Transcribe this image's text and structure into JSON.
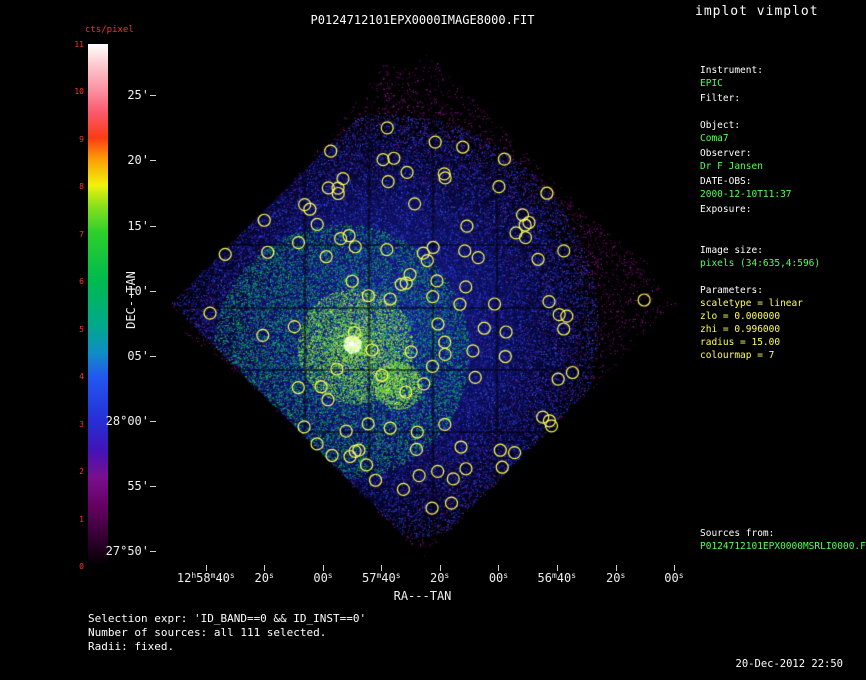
{
  "app": {
    "title": "implot vimplot",
    "timestamp": "20-Dec-2012 22:50"
  },
  "chart_data": {
    "type": "heatmap",
    "title": "P0124712101EPX0000IMAGE8000.FIT",
    "xlabel": "RA---TAN",
    "ylabel": "DEC--TAN",
    "x_ticks": [
      "12^h^58^m^40^s^",
      "20^s^",
      "00^s^",
      "57^m^40^s^",
      "20^s^",
      "00^s^",
      "56^m^40^s^",
      "20^s^",
      "00^s^"
    ],
    "y_ticks": [
      "25'",
      "20'",
      "15'",
      "10'",
      "05'",
      "28°00'",
      "55'",
      "27°50'"
    ],
    "colorbar": {
      "label": "cts/pixel",
      "min": 0,
      "max": 11,
      "ticks": [
        0,
        1,
        2,
        3,
        4,
        5,
        6,
        7,
        8,
        9,
        10,
        11
      ],
      "stops": [
        {
          "v": 0.0,
          "c": "#000000"
        },
        {
          "v": 0.05,
          "c": "#30002e"
        },
        {
          "v": 0.11,
          "c": "#62005e"
        },
        {
          "v": 0.17,
          "c": "#7a0f8e"
        },
        {
          "v": 0.22,
          "c": "#4413b6"
        },
        {
          "v": 0.28,
          "c": "#2430d6"
        },
        {
          "v": 0.36,
          "c": "#2356f0"
        },
        {
          "v": 0.41,
          "c": "#0e8fc2"
        },
        {
          "v": 0.46,
          "c": "#00a98c"
        },
        {
          "v": 0.55,
          "c": "#00bb4d"
        },
        {
          "v": 0.64,
          "c": "#2fcf2b"
        },
        {
          "v": 0.69,
          "c": "#8ae11c"
        },
        {
          "v": 0.73,
          "c": "#f2f20a"
        },
        {
          "v": 0.78,
          "c": "#fc9c06"
        },
        {
          "v": 0.82,
          "c": "#fb3c14"
        },
        {
          "v": 0.87,
          "c": "#fa5a6e"
        },
        {
          "v": 0.91,
          "c": "#fb8fa0"
        },
        {
          "v": 0.96,
          "c": "#fdc9cf"
        },
        {
          "v": 1.0,
          "c": "#ffffff"
        }
      ]
    },
    "image": {
      "object": "Coma7",
      "instrument": "EPIC",
      "pixels": "(34:635,4:596)",
      "scaletype": "linear",
      "zlo": 0.0,
      "zhi": 0.996,
      "colourmap": 7
    },
    "sources": {
      "count": 111,
      "marker_radius": 15.0,
      "color": "#ffff55"
    }
  },
  "info_panel": {
    "lines": [
      {
        "text": "Instrument:",
        "kind": "label",
        "gap": 0
      },
      {
        "text": "EPIC",
        "kind": "value",
        "gap": 0
      },
      {
        "text": "Filter:",
        "kind": "label",
        "gap": 2
      },
      {
        "text": "Object:",
        "kind": "label",
        "gap": 14
      },
      {
        "text": "Coma7",
        "kind": "value",
        "gap": 0
      },
      {
        "text": "Observer:",
        "kind": "label",
        "gap": 2
      },
      {
        "text": "Dr F Jansen",
        "kind": "value",
        "gap": 0
      },
      {
        "text": "DATE-OBS:",
        "kind": "label",
        "gap": 2
      },
      {
        "text": "2000-12-10T11:37",
        "kind": "value",
        "gap": 0
      },
      {
        "text": "Exposure:",
        "kind": "label",
        "gap": 2
      },
      {
        "text": "Image size:",
        "kind": "label",
        "gap": 28
      },
      {
        "text": "pixels (34:635,4:596)",
        "kind": "value",
        "gap": 0
      },
      {
        "text": "Parameters:",
        "kind": "label",
        "gap": 14
      },
      {
        "text": "scaletype = linear",
        "kind": "param",
        "gap": 0
      },
      {
        "text": "zlo = 0.000000",
        "kind": "param",
        "gap": 0
      },
      {
        "text": "zhi = 0.996000",
        "kind": "param",
        "gap": 0
      },
      {
        "text": "radius =  15.00",
        "kind": "param",
        "gap": 0
      },
      {
        "text": "colourmap =   7",
        "kind": "param",
        "gap": 0
      },
      {
        "text": "Sources from:",
        "kind": "label",
        "gap": 165
      },
      {
        "text": "P0124712101EPX0000MSRLI0000.F",
        "kind": "value",
        "gap": 0
      }
    ]
  },
  "footer": {
    "lines": [
      "Selection expr: 'ID_BAND==0 && ID_INST==0'",
      "Number of sources: all 111 selected.",
      "Radii: fixed."
    ]
  },
  "colors": {
    "axis_text": "#efefef",
    "colorbar_text": "#ff3220",
    "label_text": "#ffffff",
    "value_text": "#55ff55",
    "param_text": "#ffff55"
  }
}
